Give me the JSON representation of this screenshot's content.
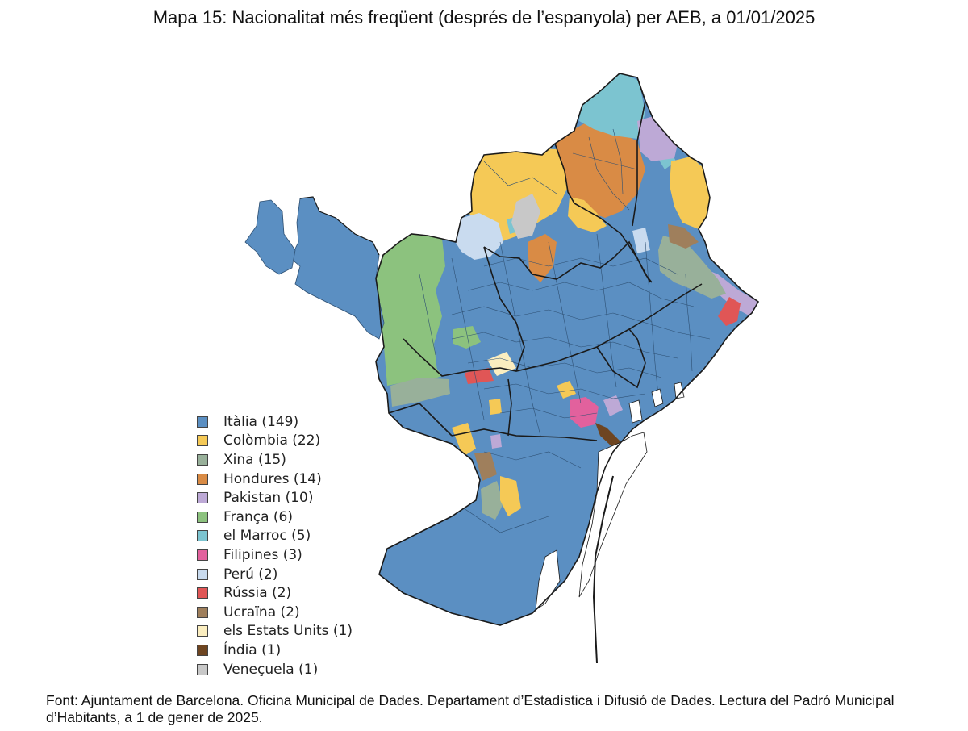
{
  "title": "Mapa 15: Nacionalitat més freqüent (després de l’espanyola) per AEB, a 01/01/2025",
  "map": {
    "colors": {
      "italia": "#5b8fc2",
      "colombia": "#f5c956",
      "xina": "#98b09a",
      "hondures": "#d98b45",
      "pakistan": "#bda9d6",
      "franca": "#8cc27e",
      "marroc": "#7cc4d0",
      "filipines": "#e2619d",
      "peru": "#c9dbef",
      "russia": "#e05656",
      "ucraina": "#9f7f5c",
      "estats_units": "#fbeec0",
      "india": "#6e4521",
      "veneçuela": "#c8c8c8",
      "border": "#1a1a1a",
      "inner_border": "#2d4f72"
    }
  },
  "legend": [
    {
      "label": "Itàlia (149)",
      "color": "#5b8fc2"
    },
    {
      "label": "Colòmbia (22)",
      "color": "#f5c956"
    },
    {
      "label": "Xina (15)",
      "color": "#98b09a"
    },
    {
      "label": "Hondures (14)",
      "color": "#d98b45"
    },
    {
      "label": "Pakistan (10)",
      "color": "#bda9d6"
    },
    {
      "label": "França (6)",
      "color": "#8cc27e"
    },
    {
      "label": "el Marroc (5)",
      "color": "#7cc4d0"
    },
    {
      "label": "Filipines (3)",
      "color": "#e2619d"
    },
    {
      "label": "Perú (2)",
      "color": "#c9dbef"
    },
    {
      "label": "Rússia (2)",
      "color": "#e05656"
    },
    {
      "label": "Ucraïna (2)",
      "color": "#9f7f5c"
    },
    {
      "label": "els Estats Units (1)",
      "color": "#fbeec0"
    },
    {
      "label": "Índia (1)",
      "color": "#6e4521"
    },
    {
      "label": "Veneçuela (1)",
      "color": "#c8c8c8"
    }
  ],
  "source": "Font: Ajuntament de Barcelona. Oficina Municipal de Dades. Departament d’Estadística i Difusió de Dades. Lectura del Padró Municipal d’Habitants, a 1 de gener de 2025."
}
